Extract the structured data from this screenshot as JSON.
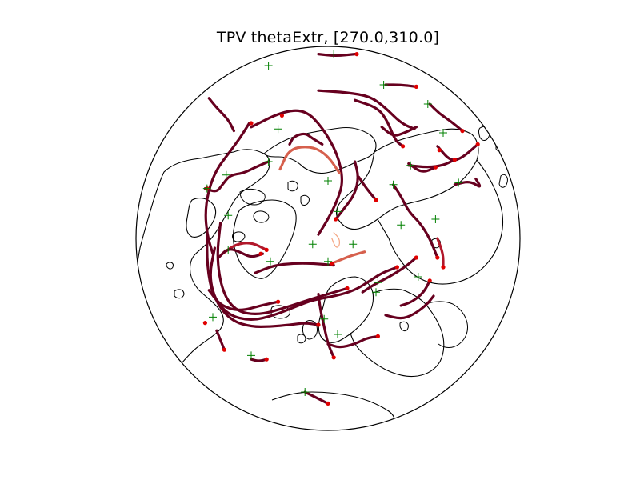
{
  "title": "TPV thetaExtr, [270.0,310.0]",
  "colors": {
    "track_dark": "#67001f",
    "track_mid": "#b2182b",
    "track_light": "#d6604d",
    "track_pale": "#f4a582",
    "start_marker": "#008000",
    "end_marker": "#e00000",
    "coastline": "#000000",
    "map_boundary": "#000000"
  },
  "map": {
    "projection": "orthographic",
    "center": "North Pole",
    "features": [
      "coastlines",
      "map-boundary"
    ]
  },
  "tracks": [
    {
      "name": "track-1",
      "color_level": "dark",
      "points": [
        [
          -0.62,
          -0.73
        ],
        [
          -0.58,
          -0.68
        ],
        [
          -0.52,
          -0.62
        ],
        [
          -0.49,
          -0.56
        ]
      ]
    },
    {
      "name": "track-2",
      "color_level": "dark",
      "points": [
        [
          -0.05,
          -0.96
        ],
        [
          0.04,
          -0.95
        ],
        [
          0.14,
          -0.96
        ]
      ]
    },
    {
      "name": "track-3",
      "color_level": "dark",
      "points": [
        [
          -0.05,
          -0.77
        ],
        [
          0.1,
          -0.76
        ],
        [
          0.22,
          -0.74
        ],
        [
          0.3,
          -0.68
        ],
        [
          0.38,
          -0.6
        ],
        [
          0.45,
          -0.57
        ]
      ]
    },
    {
      "name": "track-4",
      "color_level": "dark",
      "points": [
        [
          0.3,
          -0.8
        ],
        [
          0.38,
          -0.8
        ],
        [
          0.46,
          -0.79
        ]
      ]
    },
    {
      "name": "track-5",
      "color_level": "dark",
      "points": [
        [
          0.53,
          -0.7
        ],
        [
          0.58,
          -0.65
        ],
        [
          0.64,
          -0.61
        ],
        [
          0.7,
          -0.56
        ]
      ]
    },
    {
      "name": "track-6",
      "color_level": "dark",
      "points": [
        [
          0.14,
          -0.72
        ],
        [
          0.26,
          -0.68
        ],
        [
          0.31,
          -0.61
        ],
        [
          0.35,
          -0.51
        ],
        [
          0.39,
          -0.48
        ]
      ]
    },
    {
      "name": "track-7",
      "color_level": "dark",
      "points": [
        [
          0.28,
          -0.58
        ],
        [
          0.34,
          -0.53
        ],
        [
          0.4,
          -0.55
        ],
        [
          0.46,
          -0.58
        ]
      ]
    },
    {
      "name": "track-8",
      "color_level": "dark",
      "points": [
        [
          0.57,
          -0.48
        ],
        [
          0.64,
          -0.4
        ],
        [
          0.7,
          -0.42
        ],
        [
          0.78,
          -0.49
        ]
      ]
    },
    {
      "name": "track-9",
      "color_level": "dark",
      "points": [
        [
          0.42,
          -0.38
        ],
        [
          0.52,
          -0.37
        ],
        [
          0.6,
          -0.38
        ],
        [
          0.66,
          -0.41
        ]
      ]
    },
    {
      "name": "track-10",
      "color_level": "dark",
      "points": [
        [
          0.42,
          -0.39
        ],
        [
          0.49,
          -0.34
        ],
        [
          0.56,
          -0.37
        ]
      ]
    },
    {
      "name": "track-11",
      "color_level": "dark",
      "points": [
        [
          0.66,
          -0.28
        ],
        [
          0.74,
          -0.3
        ],
        [
          0.8,
          -0.26
        ],
        [
          0.77,
          -0.31
        ]
      ]
    },
    {
      "name": "track-12",
      "color_level": "dark",
      "points": [
        [
          -0.41,
          -0.6
        ],
        [
          -0.46,
          -0.52
        ],
        [
          -0.52,
          -0.44
        ],
        [
          -0.58,
          -0.36
        ],
        [
          -0.62,
          -0.26
        ],
        [
          -0.64,
          -0.14
        ],
        [
          -0.63,
          -0.02
        ],
        [
          -0.6,
          0.08
        ]
      ]
    },
    {
      "name": "track-13",
      "color_level": "dark",
      "points": [
        [
          -0.4,
          -0.58
        ],
        [
          -0.24,
          -0.66
        ],
        [
          -0.12,
          -0.67
        ],
        [
          -0.03,
          -0.58
        ],
        [
          0.05,
          -0.44
        ],
        [
          0.08,
          -0.3
        ],
        [
          0.05,
          -0.2
        ],
        [
          0.0,
          -0.1
        ],
        [
          -0.05,
          -0.02
        ]
      ]
    },
    {
      "name": "track-14",
      "color_level": "dark",
      "points": [
        [
          -0.31,
          -0.4
        ],
        [
          -0.38,
          -0.37
        ],
        [
          -0.44,
          -0.34
        ],
        [
          -0.51,
          -0.33
        ],
        [
          -0.55,
          -0.28
        ],
        [
          -0.58,
          -0.24
        ],
        [
          -0.64,
          -0.26
        ]
      ]
    },
    {
      "name": "track-15",
      "color_level": "dark",
      "points": [
        [
          -0.2,
          -0.49
        ],
        [
          -0.18,
          -0.53
        ],
        [
          -0.12,
          -0.55
        ],
        [
          -0.08,
          -0.52
        ],
        [
          -0.03,
          -0.49
        ]
      ]
    },
    {
      "name": "track-16",
      "color_level": "light",
      "points": [
        [
          -0.25,
          -0.36
        ],
        [
          -0.2,
          -0.47
        ],
        [
          -0.08,
          -0.48
        ],
        [
          0.0,
          -0.43
        ],
        [
          0.06,
          -0.34
        ]
      ]
    },
    {
      "name": "track-17",
      "color_level": "dark",
      "points": [
        [
          0.14,
          -0.4
        ],
        [
          0.16,
          -0.32
        ],
        [
          0.14,
          -0.23
        ],
        [
          0.08,
          -0.15
        ],
        [
          0.04,
          -0.1
        ]
      ]
    },
    {
      "name": "track-18",
      "color_level": "dark",
      "points": [
        [
          0.16,
          -0.32
        ],
        [
          0.2,
          -0.26
        ],
        [
          0.25,
          -0.2
        ]
      ]
    },
    {
      "name": "track-19",
      "color_level": "dark",
      "points": [
        [
          0.34,
          -0.28
        ],
        [
          0.38,
          -0.22
        ],
        [
          0.42,
          -0.14
        ],
        [
          0.48,
          -0.08
        ],
        [
          0.53,
          0.0
        ],
        [
          0.57,
          0.1
        ]
      ]
    },
    {
      "name": "track-20",
      "color_level": "mid",
      "points": [
        [
          0.57,
          0.0
        ],
        [
          0.6,
          0.08
        ],
        [
          0.6,
          0.15
        ]
      ]
    },
    {
      "name": "track-21",
      "color_level": "light",
      "points": [
        [
          0.19,
          0.07
        ],
        [
          0.12,
          0.09
        ],
        [
          0.07,
          0.11
        ],
        [
          0.02,
          0.13
        ]
      ]
    },
    {
      "name": "track-22",
      "color_level": "dark",
      "points": [
        [
          -0.38,
          0.18
        ],
        [
          -0.28,
          0.14
        ],
        [
          -0.18,
          0.13
        ],
        [
          -0.08,
          0.13
        ],
        [
          0.03,
          0.14
        ]
      ]
    },
    {
      "name": "track-23",
      "color_level": "mid",
      "points": [
        [
          -0.55,
          0.08
        ],
        [
          -0.48,
          0.03
        ],
        [
          -0.4,
          0.02
        ],
        [
          -0.32,
          0.06
        ]
      ]
    },
    {
      "name": "track-24",
      "color_level": "dark",
      "points": [
        [
          -0.63,
          -0.05
        ],
        [
          -0.63,
          0.15
        ],
        [
          -0.6,
          0.3
        ],
        [
          -0.52,
          0.4
        ],
        [
          -0.4,
          0.43
        ],
        [
          -0.28,
          0.4
        ],
        [
          -0.18,
          0.36
        ],
        [
          -0.08,
          0.32
        ],
        [
          0.04,
          0.3
        ],
        [
          0.14,
          0.27
        ],
        [
          0.22,
          0.22
        ],
        [
          0.28,
          0.18
        ],
        [
          0.36,
          0.15
        ]
      ]
    },
    {
      "name": "track-25",
      "color_level": "dark",
      "points": [
        [
          -0.59,
          0.05
        ],
        [
          -0.62,
          0.2
        ],
        [
          -0.58,
          0.34
        ],
        [
          -0.5,
          0.43
        ],
        [
          -0.4,
          0.46
        ],
        [
          -0.3,
          0.46
        ],
        [
          -0.2,
          0.45
        ],
        [
          -0.12,
          0.44
        ],
        [
          -0.05,
          0.45
        ]
      ]
    },
    {
      "name": "track-26",
      "color_level": "dark",
      "points": [
        [
          -0.56,
          -0.08
        ],
        [
          -0.58,
          0.1
        ],
        [
          -0.55,
          0.28
        ],
        [
          -0.48,
          0.38
        ],
        [
          -0.36,
          0.4
        ],
        [
          -0.22,
          0.36
        ],
        [
          -0.1,
          0.32
        ],
        [
          0.0,
          0.29
        ],
        [
          0.1,
          0.26
        ]
      ]
    },
    {
      "name": "track-27",
      "color_level": "dark",
      "points": [
        [
          -0.62,
          0.27
        ],
        [
          -0.56,
          0.35
        ],
        [
          -0.46,
          0.38
        ],
        [
          -0.35,
          0.35
        ],
        [
          -0.26,
          0.33
        ]
      ]
    },
    {
      "name": "track-28",
      "color_level": "dark",
      "points": [
        [
          -0.57,
          0.1
        ],
        [
          -0.52,
          0.05
        ],
        [
          -0.46,
          0.07
        ],
        [
          -0.4,
          0.1
        ],
        [
          -0.34,
          0.08
        ]
      ]
    },
    {
      "name": "track-29",
      "color_level": "dark",
      "points": [
        [
          -0.05,
          0.29
        ],
        [
          -0.04,
          0.37
        ],
        [
          -0.02,
          0.46
        ],
        [
          0.0,
          0.55
        ],
        [
          0.03,
          0.62
        ]
      ]
    },
    {
      "name": "track-30",
      "color_level": "dark",
      "points": [
        [
          0.0,
          0.55
        ],
        [
          0.06,
          0.57
        ],
        [
          0.14,
          0.55
        ],
        [
          0.2,
          0.52
        ],
        [
          0.26,
          0.51
        ]
      ]
    },
    {
      "name": "track-31",
      "color_level": "dark",
      "points": [
        [
          0.18,
          0.28
        ],
        [
          0.24,
          0.24
        ],
        [
          0.32,
          0.2
        ],
        [
          0.4,
          0.15
        ],
        [
          0.46,
          0.1
        ]
      ]
    },
    {
      "name": "track-32",
      "color_level": "dark",
      "points": [
        [
          0.38,
          0.35
        ],
        [
          0.44,
          0.33
        ],
        [
          0.5,
          0.28
        ],
        [
          0.53,
          0.22
        ]
      ]
    },
    {
      "name": "track-33",
      "color_level": "dark",
      "points": [
        [
          0.3,
          0.4
        ],
        [
          0.38,
          0.42
        ],
        [
          0.44,
          0.4
        ],
        [
          0.51,
          0.35
        ],
        [
          0.55,
          0.3
        ]
      ]
    },
    {
      "name": "track-34",
      "color_level": "dark",
      "points": [
        [
          -0.58,
          0.48
        ],
        [
          -0.56,
          0.53
        ],
        [
          -0.54,
          0.58
        ]
      ]
    },
    {
      "name": "track-35",
      "color_level": "dark",
      "points": [
        [
          -0.4,
          0.63
        ],
        [
          -0.36,
          0.64
        ],
        [
          -0.32,
          0.63
        ]
      ]
    },
    {
      "name": "track-36",
      "color_level": "dark",
      "points": [
        [
          -0.12,
          0.8
        ],
        [
          -0.06,
          0.83
        ],
        [
          0.0,
          0.86
        ]
      ]
    },
    {
      "name": "track-37",
      "color_level": "pale",
      "points": [
        [
          0.03,
          -0.03
        ],
        [
          0.06,
          0.0
        ],
        [
          0.06,
          0.04
        ],
        [
          0.04,
          0.05
        ],
        [
          0.02,
          0.0
        ]
      ]
    }
  ],
  "start_points": [
    [
      -0.31,
      -0.9
    ],
    [
      0.03,
      -0.96
    ],
    [
      0.29,
      -0.8
    ],
    [
      0.52,
      -0.7
    ],
    [
      -0.26,
      -0.57
    ],
    [
      -0.31,
      -0.4
    ],
    [
      0.34,
      -0.28
    ],
    [
      0.43,
      -0.38
    ],
    [
      0.68,
      -0.29
    ],
    [
      0.6,
      -0.55
    ],
    [
      -0.63,
      -0.26
    ],
    [
      -0.53,
      -0.33
    ],
    [
      0.0,
      -0.3
    ],
    [
      0.05,
      -0.14
    ],
    [
      0.38,
      -0.07
    ],
    [
      0.56,
      -0.1
    ],
    [
      -0.08,
      0.03
    ],
    [
      -0.52,
      0.06
    ],
    [
      -0.3,
      0.12
    ],
    [
      0.13,
      0.03
    ],
    [
      0.47,
      0.2
    ],
    [
      0.26,
      0.23
    ],
    [
      -0.02,
      0.42
    ],
    [
      0.25,
      0.28
    ],
    [
      0.05,
      0.5
    ],
    [
      -0.6,
      0.41
    ],
    [
      -0.4,
      0.61
    ],
    [
      -0.12,
      0.8
    ],
    [
      0.0,
      0.12
    ],
    [
      -0.52,
      -0.12
    ]
  ],
  "end_points": [
    [
      -0.4,
      -0.6
    ],
    [
      0.15,
      -0.96
    ],
    [
      0.46,
      -0.79
    ],
    [
      0.7,
      -0.56
    ],
    [
      -0.24,
      -0.64
    ],
    [
      -0.63,
      -0.26
    ],
    [
      0.39,
      -0.48
    ],
    [
      0.78,
      -0.49
    ],
    [
      0.66,
      -0.41
    ],
    [
      0.58,
      -0.46
    ],
    [
      0.56,
      -0.37
    ],
    [
      0.25,
      -0.2
    ],
    [
      0.04,
      -0.1
    ],
    [
      0.57,
      0.1
    ],
    [
      0.6,
      0.15
    ],
    [
      0.02,
      0.13
    ],
    [
      -0.35,
      0.08
    ],
    [
      -0.32,
      0.06
    ],
    [
      0.36,
      0.15
    ],
    [
      -0.05,
      0.45
    ],
    [
      0.26,
      0.51
    ],
    [
      0.46,
      0.1
    ],
    [
      0.53,
      0.22
    ],
    [
      0.1,
      0.26
    ],
    [
      -0.54,
      0.58
    ],
    [
      -0.32,
      0.63
    ],
    [
      0.0,
      0.86
    ],
    [
      -0.26,
      0.33
    ],
    [
      0.03,
      0.62
    ],
    [
      -0.64,
      0.44
    ]
  ]
}
